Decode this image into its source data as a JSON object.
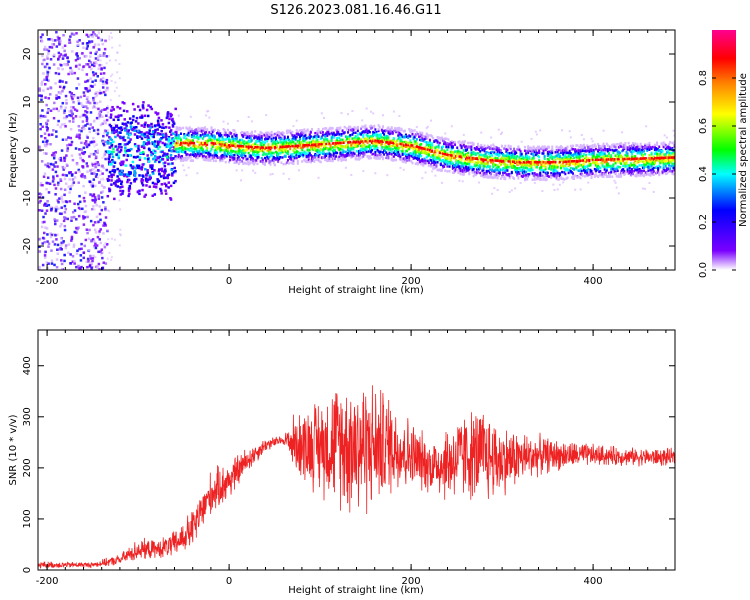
{
  "title": "S126.2023.081.16.46.G11",
  "chart_data": [
    {
      "type": "heatmap",
      "xlabel": "Height of straight line (km)",
      "ylabel": "Frequency (Hz)",
      "xlim": [
        -210,
        490
      ],
      "ylim": [
        -25,
        25
      ],
      "xticks": [
        "-200",
        "0",
        "200",
        "400"
      ],
      "xtick_values": [
        -200,
        0,
        200,
        400
      ],
      "yticks": [
        "-20",
        "-10",
        "0",
        "10",
        "20"
      ],
      "ytick_values": [
        -20,
        -10,
        0,
        10,
        20
      ],
      "colorbar": {
        "label": "Normalized spectral amplitude",
        "ticks": [
          "0.0",
          "0.2",
          "0.4",
          "0.6",
          "0.8"
        ],
        "tick_values": [
          0.0,
          0.2,
          0.4,
          0.6,
          0.8
        ],
        "range": [
          0,
          1
        ],
        "colormap": [
          "#ffffff",
          "#7a00ff",
          "#0000ff",
          "#00ffff",
          "#00ff00",
          "#ffff00",
          "#ff8000",
          "#ff0000",
          "#ff00a0"
        ]
      },
      "centerline": {
        "x": [
          -60,
          -20,
          0,
          40,
          80,
          120,
          160,
          180,
          200,
          240,
          280,
          320,
          360,
          400,
          440,
          490
        ],
        "freq": [
          1.5,
          1.5,
          1.0,
          0.5,
          1.0,
          1.5,
          2.0,
          1.5,
          1.0,
          -1.0,
          -2.0,
          -2.5,
          -2.5,
          -2.0,
          -1.8,
          -1.5
        ]
      }
    },
    {
      "type": "line",
      "xlabel": "Height of straight line (km)",
      "ylabel": "SNR (10 * v/v)",
      "xlim": [
        -210,
        490
      ],
      "ylim": [
        0,
        470
      ],
      "xticks": [
        "-200",
        "0",
        "200",
        "400"
      ],
      "xtick_values": [
        -200,
        0,
        200,
        400
      ],
      "yticks": [
        "0",
        "100",
        "200",
        "300",
        "400"
      ],
      "ytick_values": [
        0,
        100,
        200,
        300,
        400
      ],
      "series": [
        {
          "color": "#ee2222",
          "envelope": {
            "x": [
              -210,
              -150,
              -120,
              -100,
              -80,
              -60,
              -40,
              -20,
              0,
              20,
              40,
              60,
              70,
              80,
              100,
              120,
              140,
              160,
              180,
              200,
              220,
              240,
              260,
              280,
              300,
              320,
              340,
              360,
              400,
              440,
              490
            ],
            "mid": [
              10,
              10,
              20,
              40,
              40,
              50,
              80,
              150,
              175,
              215,
              245,
              255,
              250,
              245,
              245,
              250,
              245,
              245,
              245,
              225,
              205,
              210,
              225,
              225,
              215,
              220,
              225,
              225,
              225,
              222,
              220
            ],
            "amp": [
              8,
              6,
              12,
              25,
              20,
              30,
              45,
              50,
              45,
              30,
              15,
              10,
              60,
              80,
              110,
              140,
              170,
              140,
              110,
              80,
              60,
              90,
              100,
              110,
              80,
              60,
              45,
              35,
              25,
              20,
              20
            ]
          }
        }
      ]
    }
  ]
}
